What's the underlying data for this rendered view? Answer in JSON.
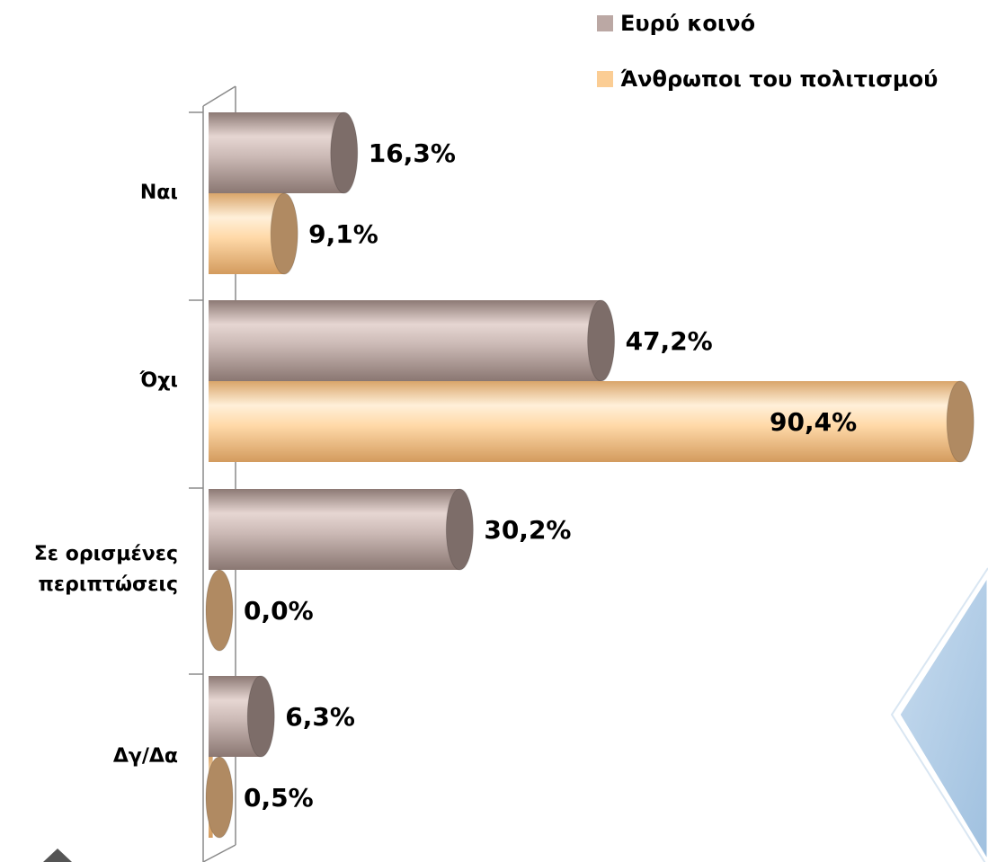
{
  "chart_data": {
    "type": "bar",
    "orientation": "horizontal",
    "categories": [
      "Ναι",
      "Όχι",
      "Σε ορισμένες περιπτώσεις",
      "Δγ/Δα"
    ],
    "category_lines": [
      [
        "Ναι"
      ],
      [
        "Όχι"
      ],
      [
        "Σε ορισμένες",
        "περιπτώσεις"
      ],
      [
        "Δγ/Δα"
      ]
    ],
    "series": [
      {
        "name": "Ευρύ κοινό",
        "color": "#bba8a4",
        "values": [
          16.3,
          47.2,
          30.2,
          6.3
        ],
        "labels": [
          "16,3%",
          "47,2%",
          "30,2%",
          "6,3%"
        ]
      },
      {
        "name": "Άνθρωποι του πολιτισμού",
        "color": "#fbcd94",
        "values": [
          9.1,
          90.4,
          0.0,
          0.5
        ],
        "labels": [
          "9,1%",
          "90,4%",
          "0,0%",
          "0,5%"
        ]
      }
    ],
    "xlim": [
      0,
      100
    ],
    "grid": false,
    "legend_position": "top-right",
    "bar_style": "3d-cylinder"
  }
}
